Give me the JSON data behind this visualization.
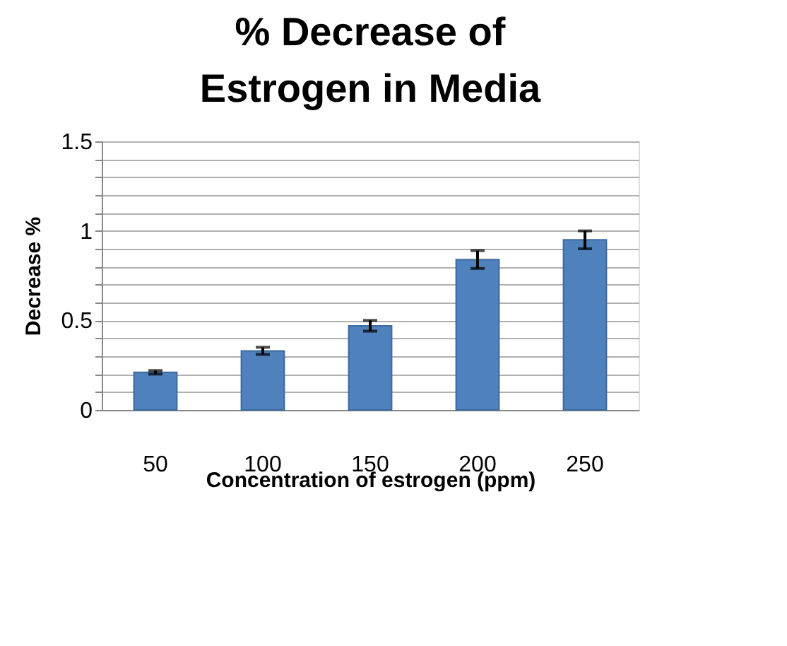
{
  "chart_data": {
    "type": "bar",
    "title": "% Decrease of Estrogen in Media",
    "xlabel": "Concentration of estrogen (ppm)",
    "ylabel": "Decrease %",
    "categories": [
      "50",
      "100",
      "150",
      "200",
      "250"
    ],
    "values": [
      0.21,
      0.33,
      0.47,
      0.84,
      0.95
    ],
    "errors": [
      0.01,
      0.02,
      0.03,
      0.05,
      0.05
    ],
    "color": "#4f81bd",
    "ylim": [
      0,
      1.5
    ],
    "yticks": [
      0,
      {
        "value": 0.1,
        "label": null
      },
      {
        "value": 0.2,
        "label": null
      },
      {
        "value": 0.3,
        "label": null
      },
      {
        "value": 0.4,
        "label": null
      },
      0.5,
      {
        "value": 0.6,
        "label": null
      },
      {
        "value": 0.7,
        "label": null
      },
      {
        "value": 0.8,
        "label": null
      },
      {
        "value": 0.9,
        "label": null
      },
      1,
      {
        "value": 1.1,
        "label": null
      },
      {
        "value": 1.2,
        "label": null
      },
      {
        "value": 1.3,
        "label": null
      },
      {
        "value": 1.4,
        "label": null
      },
      1.5
    ],
    "grid": "y"
  }
}
